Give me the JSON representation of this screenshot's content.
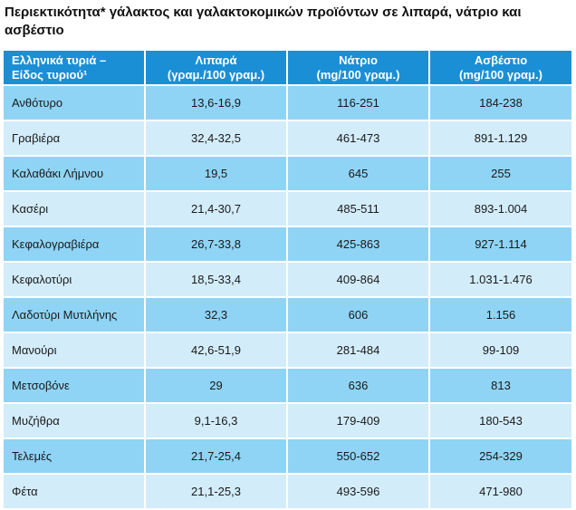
{
  "title": "Περιεκτικότητα* γάλακτος και γαλακτοκομικών προϊόντων σε λιπαρά, νάτριο και ασβέστιο",
  "colors": {
    "header_bg": "#1b8fd6",
    "row_dark": "#8fd4f5",
    "row_light": "#d2ecfa"
  },
  "table": {
    "headers": [
      {
        "line1": "Ελληνικά τυριά –",
        "line2": "Είδος τυριού¹"
      },
      {
        "line1": "Λιπαρά",
        "line2": "(γραμ./100 γραμ.)"
      },
      {
        "line1": "Νάτριο",
        "line2": "(mg/100 γραμ.)"
      },
      {
        "line1": "Ασβέστιο",
        "line2": "(mg/100 γραμ.)"
      }
    ],
    "rows": [
      [
        "Ανθότυρο",
        "13,6-16,9",
        "116-251",
        "184-238"
      ],
      [
        "Γραβιέρα",
        "32,4-32,5",
        "461-473",
        "891-1.129"
      ],
      [
        "Καλαθάκι Λήμνου",
        "19,5",
        "645",
        "255"
      ],
      [
        "Κασέρι",
        "21,4-30,7",
        "485-511",
        "893-1.004"
      ],
      [
        "Κεφαλογραβιέρα",
        "26,7-33,8",
        "425-863",
        "927-1.114"
      ],
      [
        "Κεφαλοτύρι",
        "18,5-33,4",
        "409-864",
        "1.031-1.476"
      ],
      [
        "Λαδοτύρι Μυτιλήνης",
        "32,3",
        "606",
        "1.156"
      ],
      [
        "Μανούρι",
        "42,6-51,9",
        "281-484",
        "99-109"
      ],
      [
        "Μετσοβόνε",
        "29",
        "636",
        "813"
      ],
      [
        "Μυζήθρα",
        "9,1-16,3",
        "179-409",
        "180-543"
      ],
      [
        "Τελεμές",
        "21,7-25,4",
        "550-652",
        "254-329"
      ],
      [
        "Φέτα",
        "21,1-25,3",
        "493-596",
        "471-980"
      ]
    ]
  }
}
